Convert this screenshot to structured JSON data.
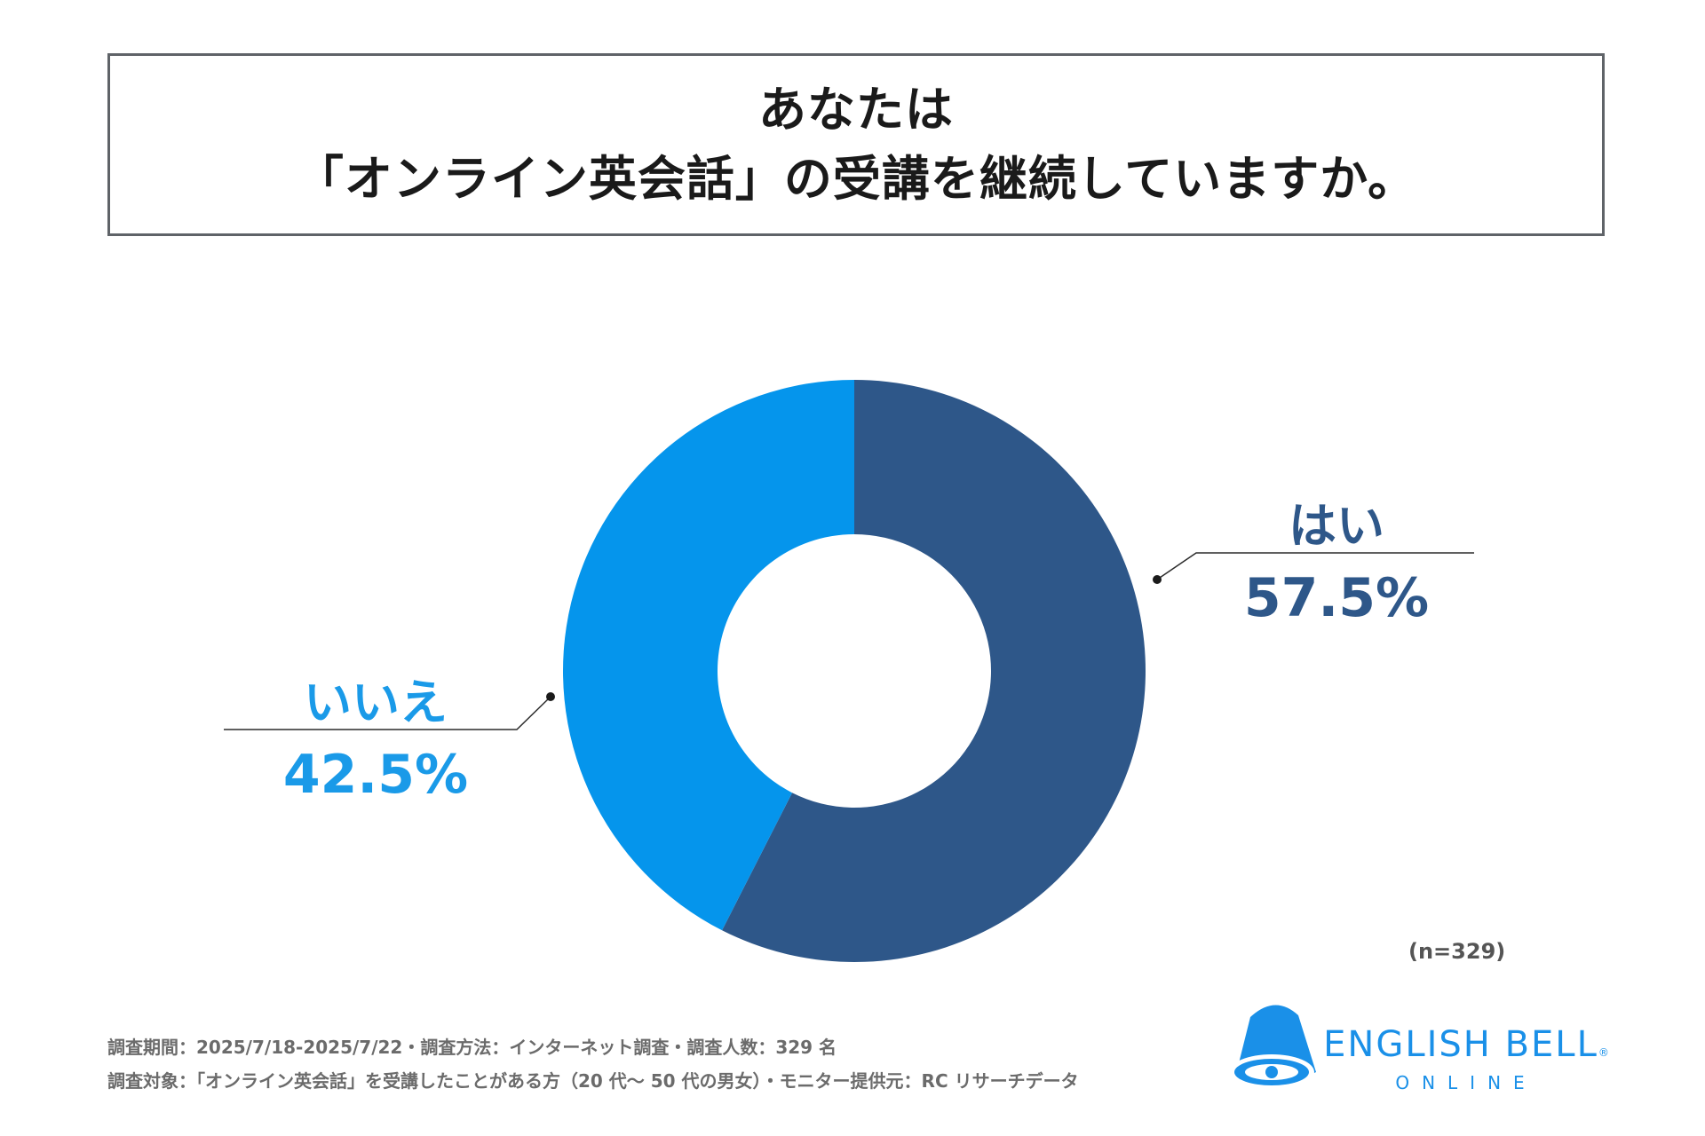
{
  "title": {
    "line1": "あなたは",
    "line2": "「オンライン英会話」の受講を継続していますか。"
  },
  "chart_data": {
    "type": "pie",
    "title": "あなたは「オンライン英会話」の受講を継続していますか。",
    "categories": [
      "はい",
      "いいえ"
    ],
    "values": [
      57.5,
      42.5
    ],
    "value_labels": [
      "57.5%",
      "42.5%"
    ],
    "colors": [
      "#2e5789",
      "#0595ec"
    ],
    "label_colors": [
      "#2e5789",
      "#1a9ae8"
    ],
    "donut": true
  },
  "sample_size": "(n=329)",
  "footnotes": {
    "line1": "調査期間：2025/7/18-2025/7/22・調査方法：インターネット調査・調査人数：329 名",
    "line2": "調査対象：「オンライン英会話」を受講したことがある方（20 代〜 50 代の男女）・モニター提供元：RC リサーチデータ"
  },
  "logo": {
    "name": "ENGLISH BELL",
    "registered": "®",
    "sub": "ONLINE",
    "color": "#1a90e8"
  }
}
